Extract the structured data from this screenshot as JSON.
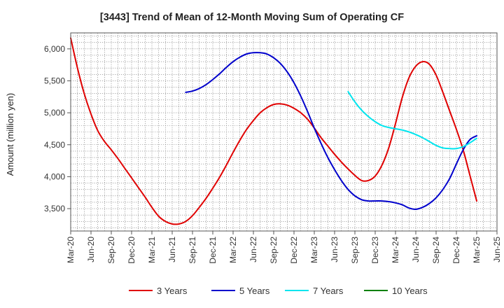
{
  "chart_data": {
    "type": "line",
    "title": "[3443]  Trend of Mean of 12-Month Moving Sum of Operating CF",
    "xlabel": "",
    "ylabel": "Amount (million yen)",
    "ylim": [
      3150,
      6250
    ],
    "yticks": [
      3500,
      4000,
      4500,
      5000,
      5500,
      6000
    ],
    "ytick_labels": [
      "3,500",
      "4,000",
      "4,500",
      "5,000",
      "5,500",
      "6,000"
    ],
    "x_range_months": [
      0,
      63
    ],
    "xticks": [
      0,
      3,
      6,
      9,
      12,
      15,
      18,
      21,
      24,
      27,
      30,
      33,
      36,
      39,
      42,
      45,
      48,
      51,
      54,
      57,
      60,
      63
    ],
    "xtick_labels": [
      "Mar-20",
      "Jun-20",
      "Sep-20",
      "Dec-20",
      "Mar-21",
      "Jun-21",
      "Sep-21",
      "Dec-21",
      "Mar-22",
      "Jun-22",
      "Sep-22",
      "Dec-22",
      "Mar-23",
      "Jun-23",
      "Sep-23",
      "Dec-23",
      "Mar-24",
      "Jun-24",
      "Sep-24",
      "Dec-24",
      "Mar-25",
      "Jun-25"
    ],
    "grid": true,
    "legend_position": "bottom",
    "series": [
      {
        "name": "3 Years",
        "color": "#e00000",
        "x": [
          0,
          1,
          2,
          3,
          4,
          5,
          6,
          7,
          8,
          9,
          10,
          11,
          12,
          13,
          14,
          15,
          16,
          17,
          18,
          19,
          20,
          21,
          22,
          23,
          24,
          25,
          26,
          27,
          28,
          29,
          30,
          31,
          32,
          33,
          34,
          35,
          36,
          37,
          38,
          39,
          40,
          41,
          42,
          43,
          44,
          45,
          46,
          47,
          48,
          49,
          50,
          51,
          52,
          53,
          54,
          55,
          56,
          57,
          58,
          59,
          60
        ],
        "values": [
          6170,
          5700,
          5300,
          4980,
          4720,
          4550,
          4420,
          4280,
          4130,
          3980,
          3830,
          3680,
          3520,
          3380,
          3300,
          3260,
          3260,
          3300,
          3390,
          3520,
          3660,
          3820,
          3990,
          4180,
          4380,
          4570,
          4740,
          4880,
          5000,
          5080,
          5130,
          5140,
          5120,
          5070,
          5000,
          4900,
          4760,
          4610,
          4480,
          4350,
          4230,
          4120,
          4020,
          3940,
          3940,
          4010,
          4180,
          4450,
          4830,
          5240,
          5550,
          5730,
          5800,
          5760,
          5590,
          5320,
          5030,
          4740,
          4420,
          4020,
          3620
        ]
      },
      {
        "name": "5 Years",
        "color": "#0000cc",
        "x": [
          17,
          18,
          19,
          20,
          21,
          22,
          23,
          24,
          25,
          26,
          27,
          28,
          29,
          30,
          31,
          32,
          33,
          34,
          35,
          36,
          37,
          38,
          39,
          40,
          41,
          42,
          43,
          44,
          45,
          46,
          47,
          48,
          49,
          50,
          51,
          52,
          53,
          54,
          55,
          56,
          57,
          58,
          59,
          60
        ],
        "values": [
          5320,
          5340,
          5380,
          5440,
          5520,
          5610,
          5710,
          5800,
          5870,
          5920,
          5940,
          5940,
          5920,
          5860,
          5770,
          5640,
          5470,
          5260,
          5020,
          4760,
          4520,
          4300,
          4110,
          3940,
          3800,
          3700,
          3640,
          3620,
          3620,
          3620,
          3610,
          3590,
          3560,
          3510,
          3490,
          3520,
          3580,
          3670,
          3800,
          3970,
          4200,
          4420,
          4580,
          4640
        ]
      },
      {
        "name": "7 Years",
        "color": "#00e5ee",
        "x": [
          41,
          42,
          43,
          44,
          45,
          46,
          47,
          48,
          49,
          50,
          51,
          52,
          53,
          54,
          55,
          56,
          57,
          58,
          59,
          60
        ],
        "values": [
          5330,
          5170,
          5040,
          4940,
          4860,
          4800,
          4770,
          4750,
          4730,
          4700,
          4660,
          4610,
          4550,
          4490,
          4450,
          4440,
          4440,
          4470,
          4530,
          4600
        ]
      },
      {
        "name": "10 Years",
        "color": "#008000",
        "x": [],
        "values": []
      }
    ]
  }
}
